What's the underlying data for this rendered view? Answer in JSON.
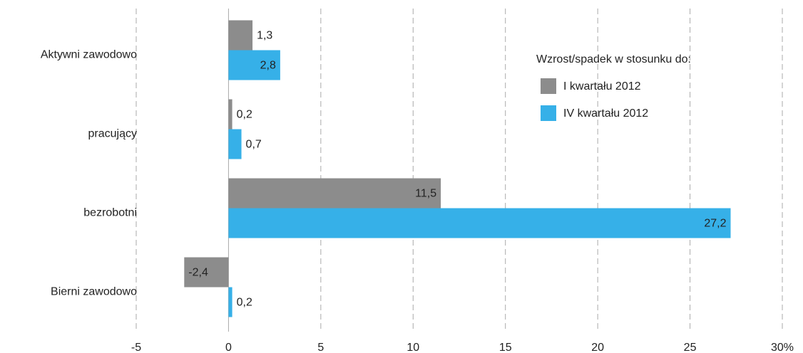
{
  "chart_data": {
    "type": "bar",
    "orientation": "horizontal",
    "categories": [
      "Aktywni zawodowo",
      "pracujący",
      "bezrobotni",
      "Bierni zawodowo"
    ],
    "series": [
      {
        "name": "I kwartału 2012",
        "color": "#8c8c8c",
        "values": [
          1.3,
          0.2,
          11.5,
          -2.4
        ],
        "value_labels": [
          "1,3",
          "0,2",
          "11,5",
          "-2,4"
        ]
      },
      {
        "name": "IV kwartału 2012",
        "color": "#36b0e8",
        "values": [
          2.8,
          0.7,
          27.2,
          0.2
        ],
        "value_labels": [
          "2,8",
          "0,7",
          "27,2",
          "0,2"
        ]
      }
    ],
    "legend_title": "Wzrost/spadek w stosunku do:",
    "legend": "upper right",
    "xlim": [
      -5,
      30
    ],
    "xticks": [
      -5,
      0,
      5,
      10,
      15,
      20,
      25,
      {
        "value": 30,
        "label": "30%"
      }
    ],
    "grid": true
  }
}
